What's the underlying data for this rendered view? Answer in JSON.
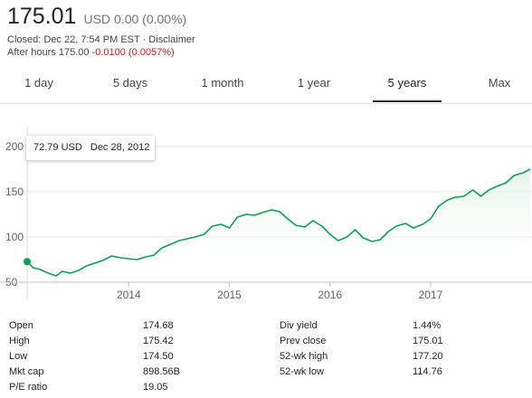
{
  "header": {
    "price": "175.01",
    "currency": "USD",
    "change": "0.00 (0.00%)",
    "closed_text": "Closed: Dec 22, 7:54 PM EST · Disclaimer",
    "after_hours_label": "After hours 175.00",
    "after_hours_change": "-0.0100 (0.0057%)"
  },
  "tabs": [
    {
      "label": "1 day"
    },
    {
      "label": "5 days"
    },
    {
      "label": "1 month"
    },
    {
      "label": "1 year"
    },
    {
      "label": "5 years",
      "active": true
    },
    {
      "label": "Max"
    }
  ],
  "tooltip": {
    "value": "72.79 USD",
    "date": "Dec 28, 2012"
  },
  "colors": {
    "line": "#0f9d58",
    "fill_start": "#e6f4ea",
    "grid": "#e8eaed",
    "negative": "#c5221f",
    "tab_active": "#222222"
  },
  "chart_data": {
    "type": "area",
    "y_ticks": [
      "200",
      "150",
      "100",
      "50"
    ],
    "x_ticks": [
      "2014",
      "2015",
      "2016",
      "2017"
    ],
    "ylim": [
      50,
      200
    ],
    "xlim": [
      2012.99,
      2017.99
    ],
    "grid": true,
    "series": [
      {
        "x": [
          2012.99,
          2013.05,
          2013.12,
          2013.2,
          2013.28,
          2013.34,
          2013.42,
          2013.5,
          2013.58,
          2013.66,
          2013.74,
          2013.83,
          2013.92,
          2014.0,
          2014.08,
          2014.17,
          2014.25,
          2014.33,
          2014.42,
          2014.5,
          2014.58,
          2014.66,
          2014.75,
          2014.83,
          2014.92,
          2015.0,
          2015.08,
          2015.17,
          2015.25,
          2015.33,
          2015.42,
          2015.5,
          2015.58,
          2015.66,
          2015.75,
          2015.83,
          2015.92,
          2016.0,
          2016.08,
          2016.17,
          2016.25,
          2016.33,
          2016.42,
          2016.5,
          2016.58,
          2016.66,
          2016.75,
          2016.83,
          2016.92,
          2017.0,
          2017.08,
          2017.17,
          2017.25,
          2017.33,
          2017.42,
          2017.5,
          2017.58,
          2017.66,
          2017.75,
          2017.83,
          2017.92,
          2017.99
        ],
        "values": [
          72.79,
          66,
          64,
          60,
          57,
          62,
          60,
          63,
          68,
          71,
          74,
          79,
          77,
          76,
          75,
          78,
          80,
          88,
          92,
          96,
          98,
          100,
          103,
          112,
          114,
          110,
          122,
          125,
          124,
          127,
          130,
          128,
          120,
          113,
          111,
          118,
          112,
          103,
          96,
          100,
          108,
          99,
          95,
          97,
          106,
          112,
          115,
          110,
          114,
          120,
          134,
          141,
          144,
          145,
          152,
          145,
          152,
          156,
          160,
          168,
          171,
          175
        ]
      }
    ]
  },
  "stats": {
    "left": [
      {
        "label": "Open",
        "value": "174.68"
      },
      {
        "label": "High",
        "value": "175.42"
      },
      {
        "label": "Low",
        "value": "174.50"
      },
      {
        "label": "Mkt cap",
        "value": "898.56B"
      },
      {
        "label": "P/E ratio",
        "value": "19.05"
      }
    ],
    "right": [
      {
        "label": "Div yield",
        "value": "1.44%"
      },
      {
        "label": "Prev close",
        "value": "175.01"
      },
      {
        "label": "52-wk high",
        "value": "177.20"
      },
      {
        "label": "52-wk low",
        "value": "114.76"
      }
    ]
  }
}
